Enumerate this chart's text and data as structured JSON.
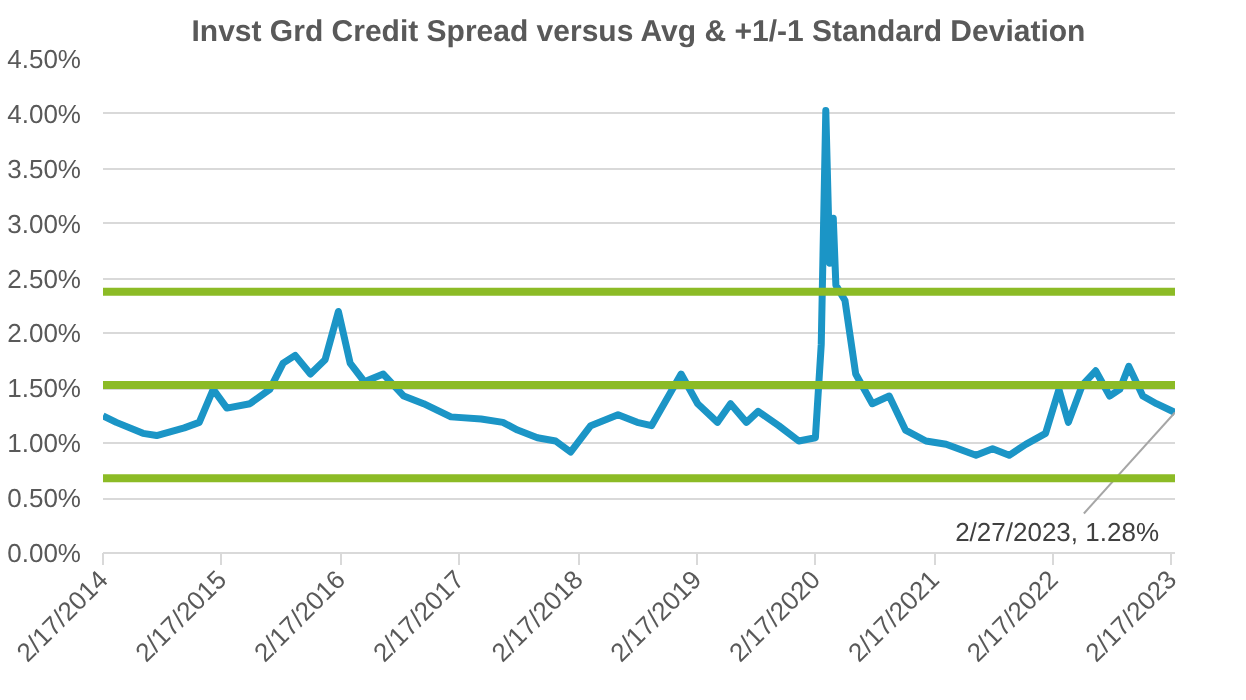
{
  "chart_data": {
    "type": "line",
    "title": "Invst Grd Credit Spread versus Avg & +1/-1 Standard Deviation",
    "x": [
      "2014-02-17",
      "2014-03-30",
      "2014-06-20",
      "2014-08-01",
      "2014-10-25",
      "2014-12-10",
      "2015-01-22",
      "2015-03-05",
      "2015-05-15",
      "2015-07-15",
      "2015-08-25",
      "2015-10-01",
      "2015-11-17",
      "2016-01-01",
      "2016-02-11",
      "2016-03-18",
      "2016-05-01",
      "2016-06-28",
      "2016-08-30",
      "2016-10-30",
      "2017-01-22",
      "2017-04-25",
      "2017-07-01",
      "2017-08-15",
      "2017-10-15",
      "2017-12-10",
      "2018-01-25",
      "2018-03-28",
      "2018-06-20",
      "2018-08-18",
      "2018-10-01",
      "2018-12-31",
      "2019-02-20",
      "2019-04-22",
      "2019-06-01",
      "2019-07-20",
      "2019-08-25",
      "2019-10-27",
      "2019-12-28",
      "2020-02-17",
      "2020-03-06",
      "2020-03-20",
      "2020-04-01",
      "2020-04-12",
      "2020-04-20",
      "2020-05-18",
      "2020-06-20",
      "2020-08-10",
      "2020-10-01",
      "2020-11-20",
      "2021-01-22",
      "2021-03-25",
      "2021-06-25",
      "2021-08-15",
      "2021-10-05",
      "2021-11-25",
      "2022-01-25",
      "2022-03-07",
      "2022-04-05",
      "2022-05-18",
      "2022-06-28",
      "2022-08-10",
      "2022-09-10",
      "2022-10-08",
      "2022-11-20",
      "2023-01-01",
      "2023-02-27"
    ],
    "series": [
      {
        "color": "#1b95c6",
        "values": [
          1.25,
          1.19,
          1.09,
          1.07,
          1.14,
          1.19,
          1.49,
          1.32,
          1.36,
          1.49,
          1.73,
          1.8,
          1.63,
          1.76,
          2.2,
          1.73,
          1.56,
          1.63,
          1.43,
          1.36,
          1.24,
          1.22,
          1.19,
          1.12,
          1.05,
          1.02,
          0.92,
          1.16,
          1.26,
          1.19,
          1.16,
          1.63,
          1.36,
          1.19,
          1.36,
          1.19,
          1.29,
          1.16,
          1.02,
          1.05,
          1.9,
          4.03,
          2.64,
          3.05,
          2.44,
          2.3,
          1.63,
          1.36,
          1.43,
          1.12,
          1.02,
          0.99,
          0.89,
          0.95,
          0.89,
          0.99,
          1.09,
          1.49,
          1.19,
          1.53,
          1.66,
          1.43,
          1.49,
          1.7,
          1.43,
          1.36,
          1.28
        ]
      }
    ],
    "xlim": [
      "2014-02-17",
      "2023-02-27"
    ],
    "xticks": [
      {
        "value": "2014-02-17",
        "label": "2/17/2014"
      },
      {
        "value": "2015-02-17",
        "label": "2/17/2015"
      },
      {
        "value": "2016-02-17",
        "label": "2/17/2016"
      },
      {
        "value": "2017-02-17",
        "label": "2/17/2017"
      },
      {
        "value": "2018-02-17",
        "label": "2/17/2018"
      },
      {
        "value": "2019-02-17",
        "label": "2/17/2019"
      },
      {
        "value": "2020-02-17",
        "label": "2/17/2020"
      },
      {
        "value": "2021-02-17",
        "label": "2/17/2021"
      },
      {
        "value": "2022-02-17",
        "label": "2/17/2022"
      },
      {
        "value": "2023-02-17",
        "label": "2/17/2023"
      }
    ],
    "ylim": [
      0,
      4.5
    ],
    "yticks": [
      {
        "value": 0,
        "label": "0.00%"
      },
      {
        "value": 0.5,
        "label": "0.50%"
      },
      {
        "value": 1,
        "label": "1.00%"
      },
      {
        "value": 1.5,
        "label": "1.50%"
      },
      {
        "value": 2,
        "label": "2.00%"
      },
      {
        "value": 2.5,
        "label": "2.50%"
      },
      {
        "value": 3,
        "label": "3.00%"
      },
      {
        "value": 3.5,
        "label": "3.50%"
      },
      {
        "value": 4,
        "label": "4.00%"
      },
      {
        "value": 4.5,
        "label": "4.50%"
      }
    ],
    "ref_lines": [
      {
        "axis": "y",
        "value": 2.38,
        "color": "#8cbb26"
      },
      {
        "axis": "y",
        "value": 1.53,
        "color": "#8cbb26"
      },
      {
        "axis": "y",
        "value": 0.68,
        "color": "#8cbb26"
      }
    ],
    "annotations": [
      {
        "text": "2/27/2023, 1.28%",
        "x": "2023-02-27",
        "y": 1.28
      }
    ],
    "grid": "y",
    "marker": "none",
    "line_style": "solid"
  }
}
